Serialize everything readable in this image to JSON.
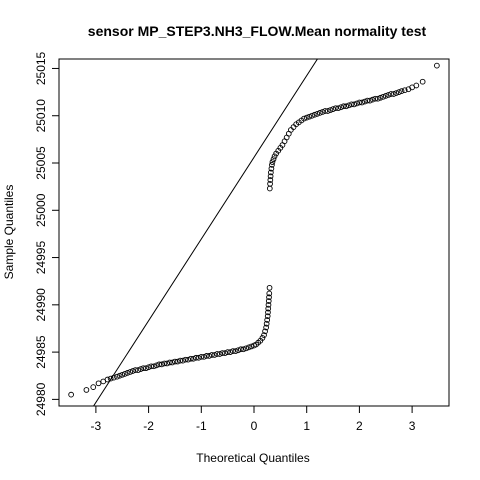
{
  "chart_data": {
    "type": "scatter",
    "title": "sensor MP_STEP3.NH3_FLOW.Mean normality test",
    "xlabel": "Theoretical Quantiles",
    "ylabel": "Sample Quantiles",
    "xlim": [
      -3.7,
      3.7
    ],
    "ylim": [
      24979.3,
      25016.0
    ],
    "x_ticks": [
      -3,
      -2,
      -1,
      0,
      1,
      2,
      3
    ],
    "y_ticks": [
      24980,
      24985,
      24990,
      24995,
      25000,
      25005,
      25010,
      25015
    ],
    "x_tick_labels": [
      "-3",
      "-2",
      "-1",
      "0",
      "1",
      "2",
      "3"
    ],
    "y_tick_labels": [
      "24980",
      "24985",
      "24990",
      "24995",
      "25000",
      "25005",
      "25010",
      "25015"
    ],
    "grid": false,
    "marker": "open-circle",
    "reference_line": {
      "slope": 8.64,
      "intercept": 25005.6
    },
    "series": [
      {
        "points": [
          [
            -3.47,
            24980.5
          ],
          [
            -3.18,
            24981.0
          ],
          [
            -3.05,
            24981.3
          ],
          [
            -2.95,
            24981.7
          ],
          [
            -2.86,
            24981.9
          ],
          [
            -2.78,
            24982.1
          ],
          [
            -2.72,
            24982.2
          ],
          [
            -2.66,
            24982.3
          ],
          [
            -2.6,
            24982.4
          ],
          [
            -2.55,
            24982.5
          ],
          [
            -2.5,
            24982.6
          ],
          [
            -2.45,
            24982.7
          ],
          [
            -2.4,
            24982.8
          ],
          [
            -2.35,
            24982.9
          ],
          [
            -2.3,
            24983.0
          ],
          [
            -2.25,
            24983.1
          ],
          [
            -2.2,
            24983.1
          ],
          [
            -2.15,
            24983.2
          ],
          [
            -2.1,
            24983.3
          ],
          [
            -2.05,
            24983.3
          ],
          [
            -2.0,
            24983.4
          ],
          [
            -1.95,
            24983.5
          ],
          [
            -1.9,
            24983.5
          ],
          [
            -1.85,
            24983.6
          ],
          [
            -1.8,
            24983.7
          ],
          [
            -1.75,
            24983.7
          ],
          [
            -1.7,
            24983.8
          ],
          [
            -1.65,
            24983.8
          ],
          [
            -1.6,
            24983.9
          ],
          [
            -1.55,
            24983.9
          ],
          [
            -1.5,
            24984.0
          ],
          [
            -1.45,
            24984.0
          ],
          [
            -1.4,
            24984.1
          ],
          [
            -1.35,
            24984.1
          ],
          [
            -1.3,
            24984.2
          ],
          [
            -1.25,
            24984.2
          ],
          [
            -1.2,
            24984.3
          ],
          [
            -1.15,
            24984.3
          ],
          [
            -1.1,
            24984.4
          ],
          [
            -1.05,
            24984.4
          ],
          [
            -1.0,
            24984.5
          ],
          [
            -0.95,
            24984.5
          ],
          [
            -0.9,
            24984.6
          ],
          [
            -0.85,
            24984.6
          ],
          [
            -0.8,
            24984.7
          ],
          [
            -0.75,
            24984.7
          ],
          [
            -0.7,
            24984.8
          ],
          [
            -0.65,
            24984.8
          ],
          [
            -0.6,
            24984.9
          ],
          [
            -0.55,
            24984.9
          ],
          [
            -0.5,
            24985.0
          ],
          [
            -0.45,
            24985.0
          ],
          [
            -0.4,
            24985.1
          ],
          [
            -0.35,
            24985.1
          ],
          [
            -0.3,
            24985.2
          ],
          [
            -0.25,
            24985.3
          ],
          [
            -0.2,
            24985.3
          ],
          [
            -0.15,
            24985.4
          ],
          [
            -0.1,
            24985.5
          ],
          [
            -0.05,
            24985.6
          ],
          [
            0.0,
            24985.7
          ],
          [
            0.04,
            24985.8
          ],
          [
            0.08,
            24986.0
          ],
          [
            0.12,
            24986.2
          ],
          [
            0.16,
            24986.5
          ],
          [
            0.19,
            24986.8
          ],
          [
            0.21,
            24987.2
          ],
          [
            0.23,
            24987.6
          ],
          [
            0.24,
            24988.0
          ],
          [
            0.25,
            24988.4
          ],
          [
            0.26,
            24988.8
          ],
          [
            0.265,
            24989.2
          ],
          [
            0.27,
            24989.6
          ],
          [
            0.275,
            24990.0
          ],
          [
            0.28,
            24990.4
          ],
          [
            0.285,
            24990.8
          ],
          [
            0.29,
            24991.2
          ],
          [
            0.295,
            24991.8
          ],
          [
            0.3,
            25002.3
          ],
          [
            0.305,
            25002.8
          ],
          [
            0.31,
            25003.2
          ],
          [
            0.315,
            25003.6
          ],
          [
            0.32,
            25004.0
          ],
          [
            0.33,
            25004.4
          ],
          [
            0.34,
            25004.8
          ],
          [
            0.35,
            25005.1
          ],
          [
            0.37,
            25005.4
          ],
          [
            0.39,
            25005.7
          ],
          [
            0.42,
            25006.0
          ],
          [
            0.46,
            25006.3
          ],
          [
            0.5,
            25006.6
          ],
          [
            0.54,
            25006.9
          ],
          [
            0.58,
            25007.3
          ],
          [
            0.62,
            25007.7
          ],
          [
            0.66,
            25008.1
          ],
          [
            0.7,
            25008.5
          ],
          [
            0.75,
            25008.8
          ],
          [
            0.8,
            25009.1
          ],
          [
            0.85,
            25009.3
          ],
          [
            0.9,
            25009.5
          ],
          [
            0.95,
            25009.7
          ],
          [
            1.0,
            25009.8
          ],
          [
            1.05,
            25009.9
          ],
          [
            1.1,
            25010.0
          ],
          [
            1.15,
            25010.1
          ],
          [
            1.2,
            25010.2
          ],
          [
            1.25,
            25010.3
          ],
          [
            1.3,
            25010.4
          ],
          [
            1.35,
            25010.5
          ],
          [
            1.4,
            25010.5
          ],
          [
            1.45,
            25010.6
          ],
          [
            1.5,
            25010.7
          ],
          [
            1.55,
            25010.8
          ],
          [
            1.6,
            25010.8
          ],
          [
            1.65,
            25010.9
          ],
          [
            1.7,
            25011.0
          ],
          [
            1.75,
            25011.0
          ],
          [
            1.8,
            25011.1
          ],
          [
            1.85,
            25011.2
          ],
          [
            1.9,
            25011.2
          ],
          [
            1.95,
            25011.3
          ],
          [
            2.0,
            25011.4
          ],
          [
            2.05,
            25011.4
          ],
          [
            2.1,
            25011.5
          ],
          [
            2.15,
            25011.6
          ],
          [
            2.2,
            25011.6
          ],
          [
            2.25,
            25011.7
          ],
          [
            2.3,
            25011.8
          ],
          [
            2.35,
            25011.8
          ],
          [
            2.4,
            25011.9
          ],
          [
            2.45,
            25012.0
          ],
          [
            2.5,
            25012.1
          ],
          [
            2.55,
            25012.2
          ],
          [
            2.6,
            25012.3
          ],
          [
            2.65,
            25012.3
          ],
          [
            2.7,
            25012.4
          ],
          [
            2.75,
            25012.5
          ],
          [
            2.8,
            25012.6
          ],
          [
            2.86,
            25012.7
          ],
          [
            2.93,
            25012.8
          ],
          [
            3.0,
            25013.0
          ],
          [
            3.08,
            25013.2
          ],
          [
            3.2,
            25013.6
          ],
          [
            3.47,
            25015.3
          ]
        ]
      }
    ]
  }
}
